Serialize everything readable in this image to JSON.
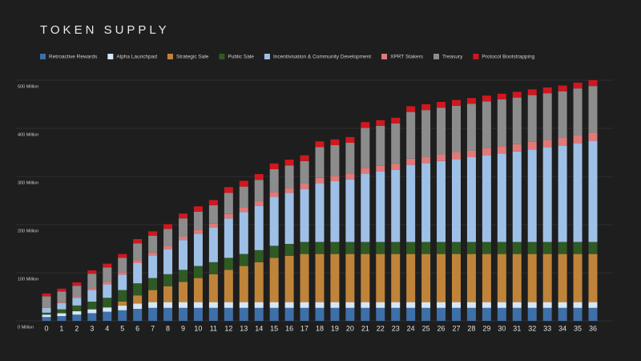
{
  "chart_data": {
    "type": "stacked_bar",
    "title": "TOKEN SUPPLY",
    "categories": [
      "0",
      "1",
      "2",
      "3",
      "4",
      "5",
      "6",
      "7",
      "8",
      "9",
      "10",
      "11",
      "12",
      "13",
      "14",
      "15",
      "16",
      "17",
      "18",
      "19",
      "20",
      "21",
      "22",
      "23",
      "24",
      "25",
      "26",
      "27",
      "28",
      "29",
      "30",
      "31",
      "32",
      "33",
      "34",
      "35",
      "36"
    ],
    "series": [
      {
        "name": "Retroactive Rewards",
        "color": "#3e6fa8",
        "values": [
          8,
          10,
          13,
          16,
          19,
          22,
          25,
          27,
          27,
          27,
          27,
          27,
          27,
          27,
          27,
          27,
          27,
          27,
          27,
          27,
          27,
          27,
          27,
          27,
          27,
          27,
          27,
          27,
          27,
          27,
          27,
          27,
          27,
          27,
          27,
          27,
          27
        ]
      },
      {
        "name": "Alpha Launchpad",
        "color": "#d6e6f5",
        "values": [
          5,
          6,
          7,
          8,
          9,
          10,
          11,
          12,
          12,
          12,
          12,
          12,
          12,
          12,
          12,
          12,
          12,
          12,
          12,
          12,
          12,
          12,
          12,
          12,
          12,
          12,
          12,
          12,
          12,
          12,
          12,
          12,
          12,
          12,
          12,
          12,
          12
        ]
      },
      {
        "name": "Strategic Sale",
        "color": "#c0833a",
        "values": [
          0,
          0,
          0,
          0,
          0,
          8,
          17,
          25,
          33,
          42,
          50,
          58,
          67,
          75,
          83,
          92,
          96,
          100,
          100,
          100,
          100,
          100,
          100,
          100,
          100,
          100,
          100,
          100,
          100,
          100,
          100,
          100,
          100,
          100,
          100,
          100,
          100
        ]
      },
      {
        "name": "Public Sale",
        "color": "#2f5a24",
        "values": [
          4,
          8,
          12,
          16,
          20,
          24,
          25,
          25,
          25,
          25,
          25,
          25,
          25,
          25,
          25,
          25,
          25,
          25,
          25,
          25,
          25,
          25,
          25,
          25,
          25,
          25,
          25,
          25,
          25,
          25,
          25,
          25,
          25,
          25,
          25,
          25,
          25
        ]
      },
      {
        "name": "Incentivisation & Community Development",
        "color": "#9fc0e6",
        "values": [
          10,
          13,
          16,
          24,
          28,
          32,
          42,
          47,
          52,
          62,
          67,
          72,
          82,
          87,
          92,
          102,
          106,
          110,
          122,
          126,
          130,
          142,
          146,
          150,
          160,
          164,
          168,
          172,
          176,
          180,
          184,
          188,
          192,
          196,
          200,
          205,
          210
        ]
      },
      {
        "name": "XPRT Stakers",
        "color": "#e07a7a",
        "values": [
          2,
          2,
          3,
          4,
          5,
          5,
          6,
          6,
          7,
          7,
          8,
          8,
          9,
          9,
          10,
          10,
          10,
          11,
          11,
          11,
          12,
          12,
          12,
          13,
          13,
          13,
          14,
          14,
          14,
          15,
          15,
          15,
          16,
          16,
          16,
          17,
          17
        ]
      },
      {
        "name": "Treasury",
        "color": "#8c8c8c",
        "values": [
          22,
          22,
          22,
          30,
          30,
          30,
          35,
          35,
          35,
          38,
          38,
          38,
          44,
          44,
          44,
          47,
          47,
          47,
          64,
          64,
          64,
          83,
          83,
          83,
          97,
          97,
          97,
          97,
          97,
          97,
          97,
          97,
          97,
          97,
          97,
          97,
          97
        ]
      },
      {
        "name": "Protocol Bootstrapping",
        "color": "#d0171f",
        "values": [
          6,
          6,
          7,
          7,
          8,
          8,
          9,
          9,
          10,
          10,
          11,
          11,
          12,
          12,
          12,
          12,
          12,
          12,
          12,
          12,
          12,
          12,
          12,
          12,
          12,
          12,
          12,
          12,
          12,
          12,
          12,
          12,
          12,
          12,
          12,
          12,
          12
        ]
      }
    ],
    "ylim": [
      0,
      500
    ],
    "yticks": [
      {
        "value": 0,
        "label": "0 Million"
      },
      {
        "value": 100,
        "label": "100 Million"
      },
      {
        "value": 200,
        "label": "200 Million"
      },
      {
        "value": 300,
        "label": "300 Million"
      },
      {
        "value": 400,
        "label": "400 Million"
      },
      {
        "value": 500,
        "label": "500 Million"
      }
    ],
    "grid": true
  }
}
